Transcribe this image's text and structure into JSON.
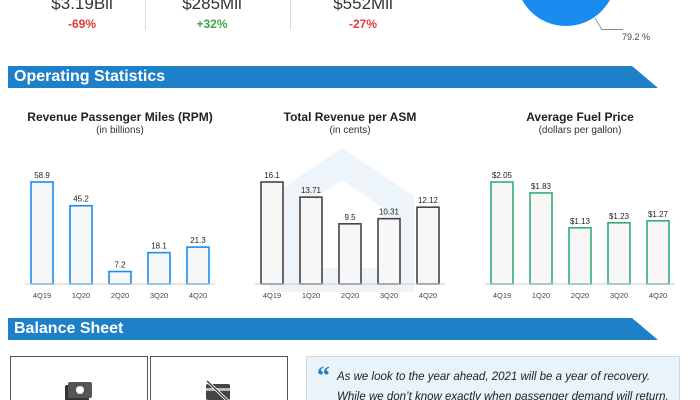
{
  "summary": {
    "stats": [
      {
        "value": "$3.19Bil",
        "change": "-69%",
        "direction": "neg"
      },
      {
        "value": "$285Mil",
        "change": "+32%",
        "direction": "pos"
      },
      {
        "value": "$552Mil",
        "change": "-27%",
        "direction": "neg"
      }
    ],
    "pie_label": "79.2 %",
    "pie_color": "#1a8cf0"
  },
  "sections": {
    "operating": "Operating Statistics",
    "balance": "Balance Sheet"
  },
  "chart_data": [
    {
      "type": "bar",
      "title": "Revenue Passenger Miles (RPM)",
      "subtitle": "(in billions)",
      "categories": [
        "4Q19",
        "1Q20",
        "2Q20",
        "3Q20",
        "4Q20"
      ],
      "values": [
        58.9,
        45.2,
        7.2,
        18.1,
        21.3
      ],
      "labels": [
        "58.9",
        "45.2",
        "7.2",
        "18.1",
        "21.3"
      ],
      "ylim": [
        0,
        58.9
      ],
      "color": "#1a8cf0"
    },
    {
      "type": "bar",
      "title": "Total Revenue per ASM",
      "subtitle": "(in cents)",
      "categories": [
        "4Q19",
        "1Q20",
        "2Q20",
        "3Q20",
        "4Q20"
      ],
      "values": [
        16.1,
        13.71,
        9.5,
        10.31,
        12.12
      ],
      "labels": [
        "16.1",
        "13.71",
        "9.5",
        "10.31",
        "12.12"
      ],
      "ylim": [
        0,
        16.1
      ],
      "color": "#444444"
    },
    {
      "type": "bar",
      "title": "Average Fuel Price",
      "subtitle": "(dollars per gallon)",
      "categories": [
        "4Q19",
        "1Q20",
        "2Q20",
        "3Q20",
        "4Q20"
      ],
      "values": [
        2.05,
        1.83,
        1.13,
        1.23,
        1.27
      ],
      "labels": [
        "$2.05",
        "$1.83",
        "$1.13",
        "$1.23",
        "$1.27"
      ],
      "ylim": [
        0,
        2.05
      ],
      "color": "#2fb070"
    }
  ],
  "quote": {
    "mark": "“",
    "text": "As we look to the year ahead, 2021 will be a year of recovery. While we don’t know exactly when passenger demand will return,"
  },
  "balance_icons": [
    "cash-icon",
    "no-card-icon"
  ]
}
